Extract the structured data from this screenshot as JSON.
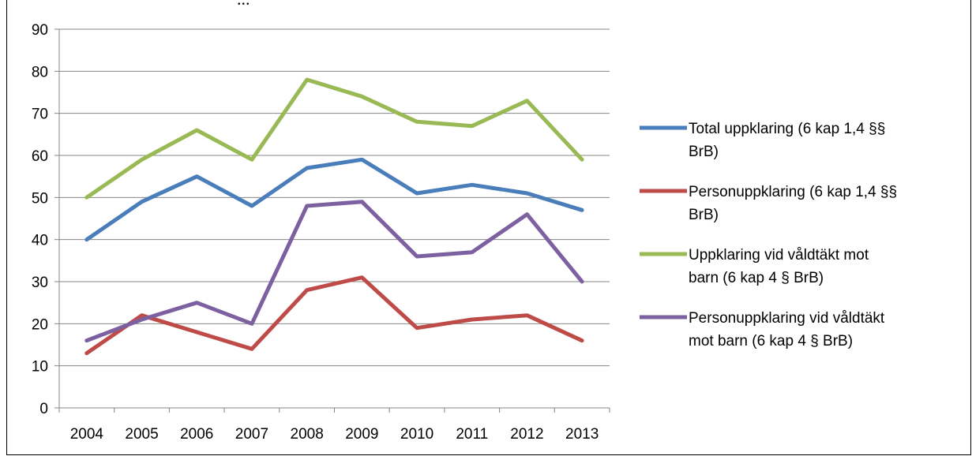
{
  "top_caption": "...",
  "chart_data": {
    "type": "line",
    "x": [
      "2004",
      "2005",
      "2006",
      "2007",
      "2008",
      "2009",
      "2010",
      "2011",
      "2012",
      "2013"
    ],
    "ylim": [
      0,
      90
    ],
    "yticks": [
      0,
      10,
      20,
      30,
      40,
      50,
      60,
      70,
      80,
      90
    ],
    "grid": true,
    "legend_position": "right",
    "series": [
      {
        "name": "Total uppklaring (6 kap 1,4 §§ BrB)",
        "color": "#4a7ebb",
        "values": [
          40,
          49,
          55,
          48,
          57,
          59,
          51,
          53,
          51,
          47
        ]
      },
      {
        "name": "Personuppklaring (6 kap 1,4 §§ BrB)",
        "color": "#be4b48",
        "values": [
          13,
          22,
          18,
          14,
          28,
          31,
          19,
          21,
          22,
          16
        ]
      },
      {
        "name": "Uppklaring vid våldtäkt mot barn (6 kap 4 § BrB)",
        "color": "#98b954",
        "values": [
          50,
          59,
          66,
          59,
          78,
          74,
          68,
          67,
          73,
          59
        ]
      },
      {
        "name": "Personuppklaring vid våldtäkt mot barn (6 kap 4 § BrB)",
        "color": "#7d60a0",
        "values": [
          16,
          21,
          25,
          20,
          48,
          49,
          36,
          37,
          46,
          30
        ]
      }
    ]
  }
}
